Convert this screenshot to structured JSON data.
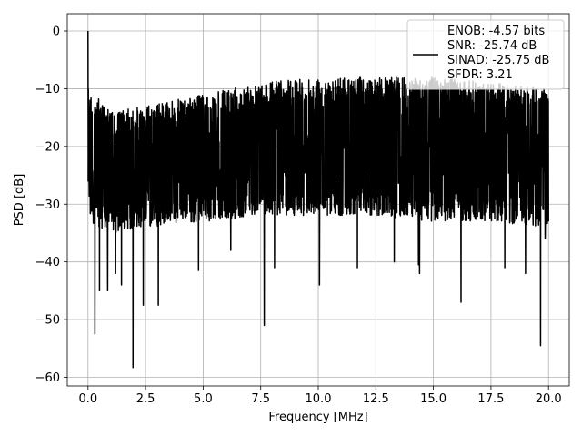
{
  "chart_data": {
    "type": "line",
    "title": "",
    "xlabel": "Frequency [MHz]",
    "ylabel": "PSD [dB]",
    "xlim": [
      -0.9,
      20.9
    ],
    "ylim": [
      -61.5,
      3
    ],
    "xticks": [
      0.0,
      2.5,
      5.0,
      7.5,
      10.0,
      12.5,
      15.0,
      17.5,
      20.0
    ],
    "xtick_labels": [
      "0.0",
      "2.5",
      "5.0",
      "7.5",
      "10.0",
      "12.5",
      "15.0",
      "17.5",
      "20.0"
    ],
    "yticks": [
      0,
      -10,
      -20,
      -30,
      -40,
      -50,
      -60
    ],
    "ytick_labels": [
      "0",
      "−10",
      "−20",
      "−30",
      "−40",
      "−50",
      "−60"
    ],
    "grid": true,
    "legend_placement": "upper-right",
    "line_color": "#000000",
    "x_range": [
      0,
      20
    ],
    "peak": {
      "x": 0.0,
      "y": 0.0
    },
    "envelope": {
      "x": [
        0.05,
        1.0,
        2.5,
        5.0,
        7.5,
        10.0,
        12.5,
        15.0,
        17.5,
        20.0
      ],
      "upper": [
        -10,
        -14,
        -13,
        -11,
        -9,
        -8,
        -8,
        -8,
        -9,
        -10
      ],
      "lower": [
        -33,
        -35,
        -34,
        -33,
        -32,
        -32,
        -32,
        -33,
        -33,
        -34
      ]
    },
    "dips": [
      {
        "x": 0.3,
        "y": -52.5
      },
      {
        "x": 0.5,
        "y": -45
      },
      {
        "x": 0.85,
        "y": -45
      },
      {
        "x": 1.2,
        "y": -42
      },
      {
        "x": 1.45,
        "y": -44
      },
      {
        "x": 1.95,
        "y": -58.3
      },
      {
        "x": 2.4,
        "y": -47.5
      },
      {
        "x": 3.05,
        "y": -47.5
      },
      {
        "x": 4.8,
        "y": -41.5
      },
      {
        "x": 6.2,
        "y": -38
      },
      {
        "x": 7.65,
        "y": -51
      },
      {
        "x": 8.1,
        "y": -41
      },
      {
        "x": 10.05,
        "y": -44
      },
      {
        "x": 11.7,
        "y": -41
      },
      {
        "x": 13.3,
        "y": -40
      },
      {
        "x": 14.4,
        "y": -42
      },
      {
        "x": 14.35,
        "y": -40.5
      },
      {
        "x": 16.2,
        "y": -47
      },
      {
        "x": 18.1,
        "y": -41
      },
      {
        "x": 19.0,
        "y": -42
      },
      {
        "x": 19.65,
        "y": -54.5
      },
      {
        "x": 19.85,
        "y": -36
      }
    ],
    "legend": [
      "ENOB: -4.57 bits",
      "SNR: -25.74 dB",
      "SINAD: -25.75 dB",
      "SFDR: 3.21"
    ]
  }
}
